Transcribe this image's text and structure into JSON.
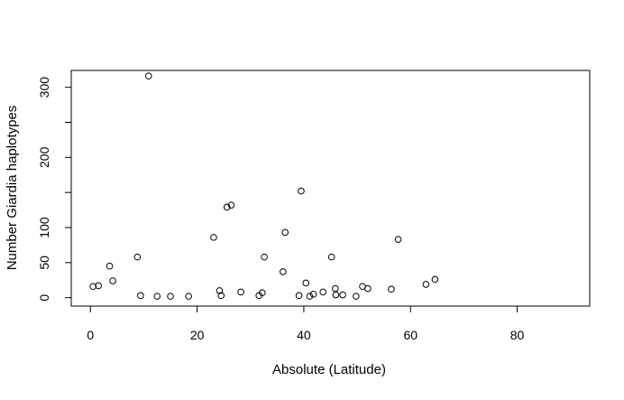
{
  "chart_data": {
    "type": "scatter",
    "title": "",
    "xlabel": "Absolute (Latitude)",
    "ylabel": "Number Giardia haplotypes",
    "xlim": [
      -3.6,
      93.6
    ],
    "ylim": [
      -12,
      324
    ],
    "x_ticks": [
      0,
      20,
      40,
      60,
      80
    ],
    "y_ticks": [
      0,
      50,
      100,
      200,
      300
    ],
    "y_minor_ticks": [
      150,
      250
    ],
    "grid": false,
    "legend": "none",
    "marker": "open-circle",
    "marker_color": "#000000",
    "points": [
      {
        "x": 0.5,
        "y": 16
      },
      {
        "x": 1.5,
        "y": 17
      },
      {
        "x": 3.6,
        "y": 45
      },
      {
        "x": 4.2,
        "y": 24
      },
      {
        "x": 8.8,
        "y": 58
      },
      {
        "x": 9.4,
        "y": 3
      },
      {
        "x": 10.9,
        "y": 316
      },
      {
        "x": 12.5,
        "y": 2
      },
      {
        "x": 15.0,
        "y": 2
      },
      {
        "x": 18.4,
        "y": 2
      },
      {
        "x": 23.1,
        "y": 86
      },
      {
        "x": 24.2,
        "y": 10
      },
      {
        "x": 24.5,
        "y": 3
      },
      {
        "x": 25.6,
        "y": 129
      },
      {
        "x": 26.4,
        "y": 132
      },
      {
        "x": 28.2,
        "y": 8
      },
      {
        "x": 31.6,
        "y": 3
      },
      {
        "x": 32.2,
        "y": 7
      },
      {
        "x": 32.6,
        "y": 58
      },
      {
        "x": 36.1,
        "y": 37
      },
      {
        "x": 36.5,
        "y": 93
      },
      {
        "x": 39.1,
        "y": 3
      },
      {
        "x": 39.5,
        "y": 152
      },
      {
        "x": 40.4,
        "y": 21
      },
      {
        "x": 41.1,
        "y": 2
      },
      {
        "x": 41.8,
        "y": 5
      },
      {
        "x": 43.6,
        "y": 8
      },
      {
        "x": 45.2,
        "y": 58
      },
      {
        "x": 45.9,
        "y": 13
      },
      {
        "x": 46.0,
        "y": 4
      },
      {
        "x": 47.3,
        "y": 4
      },
      {
        "x": 49.8,
        "y": 2
      },
      {
        "x": 51.0,
        "y": 16
      },
      {
        "x": 52.0,
        "y": 13
      },
      {
        "x": 56.4,
        "y": 12
      },
      {
        "x": 57.7,
        "y": 83
      },
      {
        "x": 62.9,
        "y": 19
      },
      {
        "x": 64.6,
        "y": 26
      }
    ]
  }
}
